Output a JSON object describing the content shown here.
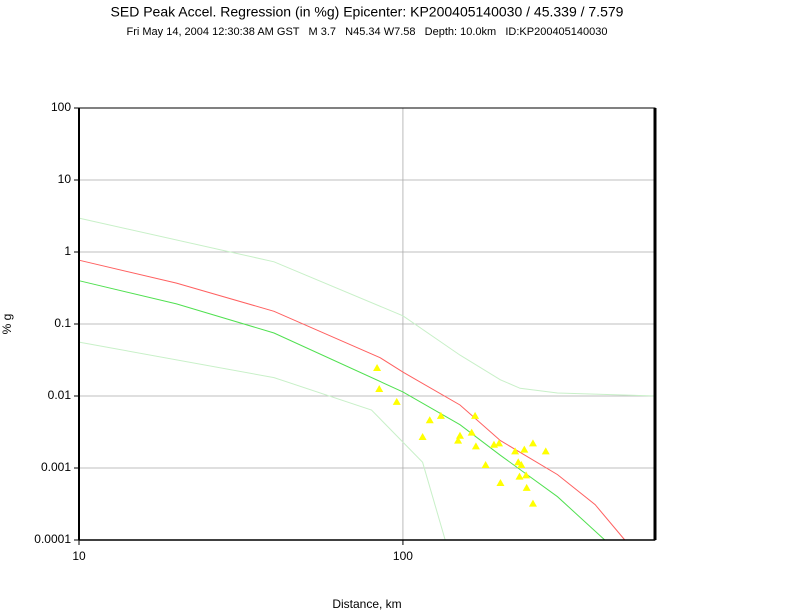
{
  "chart_data": {
    "type": "scatter",
    "title": "SED Peak Accel. Regression (in %g) Epicenter: KP200405140030 / 45.339 / 7.579",
    "subtitle": "Fri May 14, 2004 12:30:38 AM GST   M 3.7   N45.34 W7.58   Depth: 10.0km   ID:KP200405140030",
    "x_label": "Distance, km",
    "y_label": "% g",
    "xscale": "log",
    "yscale": "log",
    "xlim": [
      10,
      600
    ],
    "ylim": [
      0.0001,
      100
    ],
    "xticks": [
      10,
      100
    ],
    "yticks": [
      0.0001,
      0.001,
      0.01,
      0.1,
      1,
      10,
      100
    ],
    "grid": true,
    "points": {
      "color": "#ffff00",
      "x": [
        83.2,
        84.5,
        95.7,
        115,
        121,
        131,
        148,
        150,
        163,
        167,
        168,
        180,
        191,
        198,
        200,
        222,
        227,
        229,
        232,
        237,
        240,
        241,
        252,
        252,
        276
      ],
      "values": [
        0.0245,
        0.0125,
        0.0083,
        0.0027,
        0.0046,
        0.0053,
        0.0024,
        0.0028,
        0.0031,
        0.0053,
        0.002,
        0.0011,
        0.0021,
        0.0022,
        0.00062,
        0.0017,
        0.0012,
        0.00076,
        0.0011,
        0.0018,
        0.00079,
        0.00053,
        0.0022,
        0.00032,
        0.0017
      ]
    },
    "series": [
      {
        "color": "#ff6060",
        "x": [
          10,
          20,
          40,
          85,
          100,
          150,
          200,
          300,
          392,
          484
        ],
        "values": [
          0.77,
          0.37,
          0.15,
          0.034,
          0.0215,
          0.0075,
          0.0024,
          0.00081,
          0.00031,
          0.0001
        ]
      },
      {
        "color": "#50e050",
        "x": [
          10,
          20,
          40,
          100,
          150,
          200,
          300,
          420
        ],
        "values": [
          0.4,
          0.19,
          0.075,
          0.0114,
          0.004,
          0.0015,
          0.0004,
          0.0001
        ]
      },
      {
        "color": "#c8f0c8",
        "x": [
          10,
          40,
          100,
          150,
          200,
          230,
          300,
          600
        ],
        "values": [
          2.96,
          0.73,
          0.13,
          0.037,
          0.0168,
          0.0128,
          0.011,
          0.01
        ]
      },
      {
        "color": "#c8f0c8",
        "x": [
          10,
          40,
          80,
          115,
          135
        ],
        "values": [
          0.056,
          0.018,
          0.0064,
          0.0012,
          0.0001
        ]
      }
    ]
  }
}
